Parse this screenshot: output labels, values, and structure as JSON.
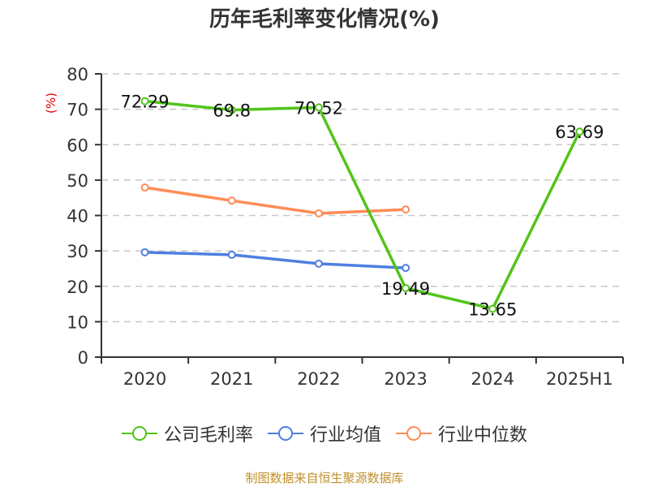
{
  "title": "历年毛利率变化情况(%)",
  "source_note": "制图数据来自恒生聚源数据库",
  "colors": {
    "company": "#52c41a",
    "industry_avg": "#4e7fe0",
    "industry_median": "#ff8c55",
    "axis": "#333333",
    "grid": "#c8c8c8",
    "unit_label": "#e00000",
    "source": "#c0902a"
  },
  "legend": [
    {
      "name": "公司毛利率",
      "color": "#52c41a"
    },
    {
      "name": "行业均值",
      "color": "#4e7fe0"
    },
    {
      "name": "行业中位数",
      "color": "#ff8c55"
    }
  ],
  "chart_data": {
    "type": "line",
    "title": "历年毛利率变化情况(%)",
    "xlabel": "",
    "ylabel": "(%)",
    "categories": [
      "2020",
      "2021",
      "2022",
      "2023",
      "2024",
      "2025H1"
    ],
    "ylim": [
      0,
      80
    ],
    "yticks": [
      0,
      10,
      20,
      30,
      40,
      50,
      60,
      70,
      80
    ],
    "grid": true,
    "grid_style": "dashed",
    "legend_position": "bottom",
    "series": [
      {
        "name": "公司毛利率",
        "values": [
          72.29,
          69.8,
          70.52,
          19.49,
          13.65,
          63.69
        ],
        "labels_shown": true
      },
      {
        "name": "行业均值",
        "values": [
          29.6,
          28.9,
          26.4,
          25.2,
          null,
          null
        ],
        "labels_shown": false
      },
      {
        "name": "行业中位数",
        "values": [
          47.9,
          44.2,
          40.6,
          41.7,
          null,
          null
        ],
        "labels_shown": false
      }
    ]
  }
}
